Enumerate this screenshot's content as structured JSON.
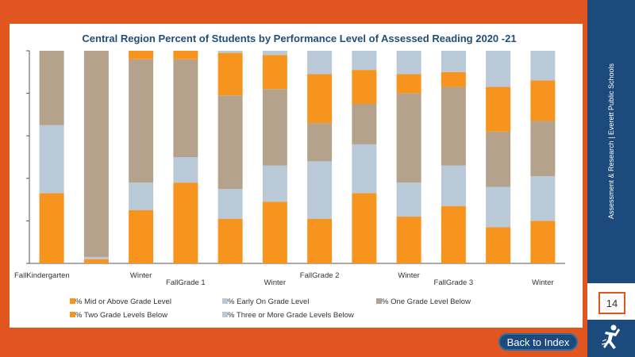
{
  "chart_data": {
    "type": "bar",
    "stacked": true,
    "title": "Central Region Percent of Students by Performance Level of Assessed Reading 2020 -21",
    "x_tick_labels": [
      "FallKindergarten",
      "",
      "Winter",
      "FallGrade 1",
      "",
      "Winter",
      "FallGrade 2",
      "",
      "Winter",
      "FallGrade 3",
      "",
      "Winter"
    ],
    "ylim": [
      0,
      100
    ],
    "grid": false,
    "legend_position": "bottom",
    "series": [
      {
        "name": "% Mid or Above Grade Level",
        "color": "#f7941d",
        "values": [
          33,
          2,
          25,
          38,
          21,
          29,
          21,
          33,
          22,
          27,
          17,
          20
        ]
      },
      {
        "name": "% Early On Grade Level",
        "color": "#b9c9d8",
        "values": [
          32,
          1,
          13,
          12,
          14,
          17,
          27,
          23,
          16,
          19,
          19,
          21
        ]
      },
      {
        "name": "% One Grade Level Below",
        "color": "#b4a28d",
        "values": [
          35,
          97,
          58,
          46,
          44,
          36,
          18,
          19,
          42,
          37,
          26,
          26
        ]
      },
      {
        "name": "% Two Grade Levels Below",
        "color": "#f7941d",
        "values": [
          0,
          0,
          4,
          4,
          20,
          16,
          23,
          16,
          9,
          7,
          21,
          19
        ]
      },
      {
        "name": "% Three or More Grade Levels Below",
        "color": "#b9c9d8",
        "values": [
          0,
          0,
          0,
          0,
          1,
          2,
          11,
          9,
          11,
          10,
          17,
          14
        ]
      }
    ]
  },
  "sidebar": {
    "vertical_text": "Assessment & Research | Everett Public Schools",
    "page_number": "14"
  },
  "back_button_label": "Back to Index",
  "colors": {
    "orange_frame": "#e0561e",
    "navy": "#1c4a7c",
    "title": "#1f4e79"
  },
  "logo": {
    "icon": "everett-schools-logo-icon"
  }
}
